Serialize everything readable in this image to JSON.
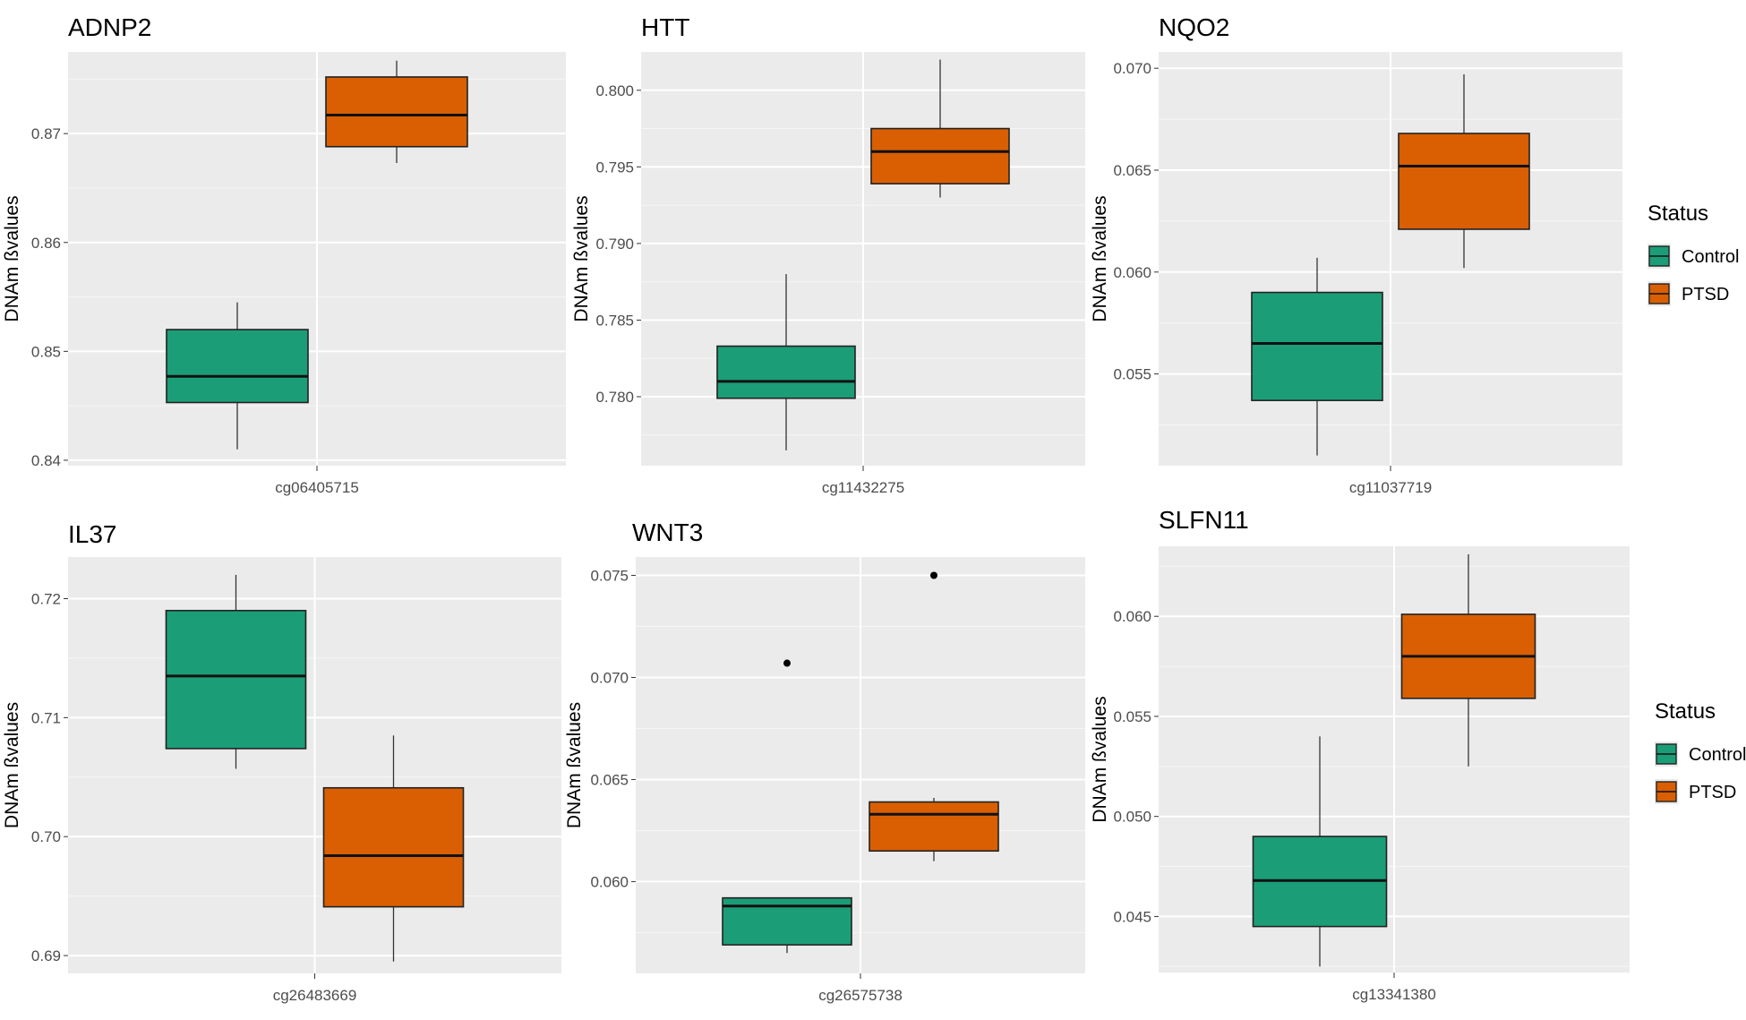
{
  "chart_data": [
    {
      "type": "box",
      "title": "ADNP2",
      "xlabel": "",
      "ylabel": "DNAm ßvalues",
      "categories": [
        "cg06405715"
      ],
      "ylim": [
        0.8395,
        0.8775
      ],
      "yticks": [
        "0.84",
        "0.85",
        "0.86",
        "0.87"
      ],
      "grid": true,
      "series": [
        {
          "name": "Control",
          "color": "#1b9e77",
          "whisker_low": 0.841,
          "q1": 0.8453,
          "median": 0.8477,
          "q3": 0.852,
          "whisker_high": 0.8545,
          "outliers": []
        },
        {
          "name": "PTSD",
          "color": "#d95f02",
          "whisker_low": 0.8673,
          "q1": 0.8688,
          "median": 0.8717,
          "q3": 0.8752,
          "whisker_high": 0.8767,
          "outliers": []
        }
      ]
    },
    {
      "type": "box",
      "title": "HTT",
      "xlabel": "",
      "ylabel": "DNAm ßvalues",
      "categories": [
        "cg11432275"
      ],
      "ylim": [
        0.7755,
        0.8025
      ],
      "yticks": [
        "0.780",
        "0.785",
        "0.790",
        "0.795",
        "0.800"
      ],
      "grid": true,
      "series": [
        {
          "name": "Control",
          "color": "#1b9e77",
          "whisker_low": 0.7765,
          "q1": 0.7799,
          "median": 0.781,
          "q3": 0.7833,
          "whisker_high": 0.788,
          "outliers": []
        },
        {
          "name": "PTSD",
          "color": "#d95f02",
          "whisker_low": 0.793,
          "q1": 0.7939,
          "median": 0.796,
          "q3": 0.7975,
          "whisker_high": 0.802,
          "outliers": []
        }
      ]
    },
    {
      "type": "box",
      "title": "NQO2",
      "xlabel": "",
      "ylabel": "DNAm ßvalues",
      "categories": [
        "cg11037719"
      ],
      "ylim": [
        0.0505,
        0.0708
      ],
      "yticks": [
        "0.055",
        "0.060",
        "0.065",
        "0.070"
      ],
      "grid": true,
      "series": [
        {
          "name": "Control",
          "color": "#1b9e77",
          "whisker_low": 0.051,
          "q1": 0.0537,
          "median": 0.0565,
          "q3": 0.059,
          "whisker_high": 0.0607,
          "outliers": []
        },
        {
          "name": "PTSD",
          "color": "#d95f02",
          "whisker_low": 0.0602,
          "q1": 0.0621,
          "median": 0.0652,
          "q3": 0.0668,
          "whisker_high": 0.0697,
          "outliers": []
        }
      ]
    },
    {
      "type": "box",
      "title": "IL37",
      "xlabel": "",
      "ylabel": "DNAm ßvalues",
      "categories": [
        "cg26483669"
      ],
      "ylim": [
        0.6885,
        0.7235
      ],
      "yticks": [
        "0.69",
        "0.70",
        "0.71",
        "0.72"
      ],
      "grid": true,
      "series": [
        {
          "name": "Control",
          "color": "#1b9e77",
          "whisker_low": 0.7057,
          "q1": 0.7074,
          "median": 0.7135,
          "q3": 0.719,
          "whisker_high": 0.722,
          "outliers": []
        },
        {
          "name": "PTSD",
          "color": "#d95f02",
          "whisker_low": 0.6895,
          "q1": 0.6941,
          "median": 0.6984,
          "q3": 0.7041,
          "whisker_high": 0.7085,
          "outliers": []
        }
      ]
    },
    {
      "type": "box",
      "title": "WNT3",
      "xlabel": "",
      "ylabel": "DNAm ßvalues",
      "categories": [
        "cg26575738"
      ],
      "ylim": [
        0.0555,
        0.0759
      ],
      "yticks": [
        "0.060",
        "0.065",
        "0.070",
        "0.075"
      ],
      "grid": true,
      "series": [
        {
          "name": "Control",
          "color": "#1b9e77",
          "whisker_low": 0.0565,
          "q1": 0.0569,
          "median": 0.0588,
          "q3": 0.0592,
          "whisker_high": 0.0592,
          "outliers": [
            0.0707
          ]
        },
        {
          "name": "PTSD",
          "color": "#d95f02",
          "whisker_low": 0.061,
          "q1": 0.0615,
          "median": 0.0633,
          "q3": 0.0639,
          "whisker_high": 0.0641,
          "outliers": [
            0.075
          ]
        }
      ]
    },
    {
      "type": "box",
      "title": "SLFN11",
      "xlabel": "",
      "ylabel": "DNAm ßvalues",
      "categories": [
        "cg13341380"
      ],
      "ylim": [
        0.0422,
        0.0635
      ],
      "yticks": [
        "0.045",
        "0.050",
        "0.055",
        "0.060"
      ],
      "grid": true,
      "series": [
        {
          "name": "Control",
          "color": "#1b9e77",
          "whisker_low": 0.0425,
          "q1": 0.0445,
          "median": 0.0468,
          "q3": 0.049,
          "whisker_high": 0.054,
          "outliers": []
        },
        {
          "name": "PTSD",
          "color": "#d95f02",
          "whisker_low": 0.0525,
          "q1": 0.0559,
          "median": 0.058,
          "q3": 0.0601,
          "whisker_high": 0.0631,
          "outliers": []
        }
      ]
    }
  ],
  "legends": [
    {
      "title": "Status",
      "items": [
        {
          "label": "Control",
          "color": "#1b9e77"
        },
        {
          "label": "PTSD",
          "color": "#d95f02"
        }
      ]
    },
    {
      "title": "Status",
      "items": [
        {
          "label": "Control",
          "color": "#1b9e77"
        },
        {
          "label": "PTSD",
          "color": "#d95f02"
        }
      ]
    }
  ]
}
